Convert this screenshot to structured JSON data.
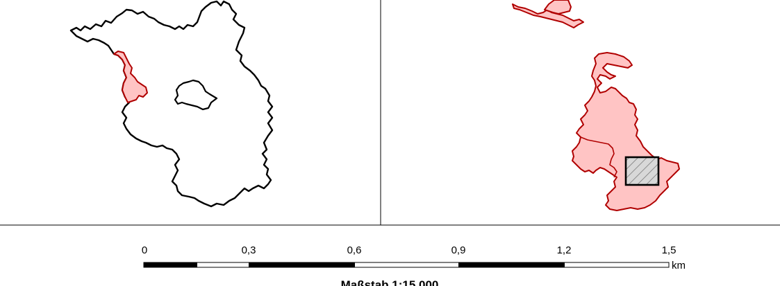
{
  "colors": {
    "region_outline": "#000000",
    "highlight_fill": "#ffc4c4",
    "highlight_stroke": "#b00000",
    "hatch": "#8a8a8a",
    "frame": "#000000"
  },
  "left_panel": {
    "state": "Brandenburg outline with Berlin enclave",
    "highlight": "district near western border"
  },
  "right_panel": {
    "detail": "enlarged highlighted district with hatched extent box"
  },
  "scalebar": {
    "ticks": [
      "0",
      "0,3",
      "0,6",
      "0,9",
      "1,2",
      "1,5"
    ],
    "unit": "km",
    "title": "Maßstab 1:15.000"
  }
}
